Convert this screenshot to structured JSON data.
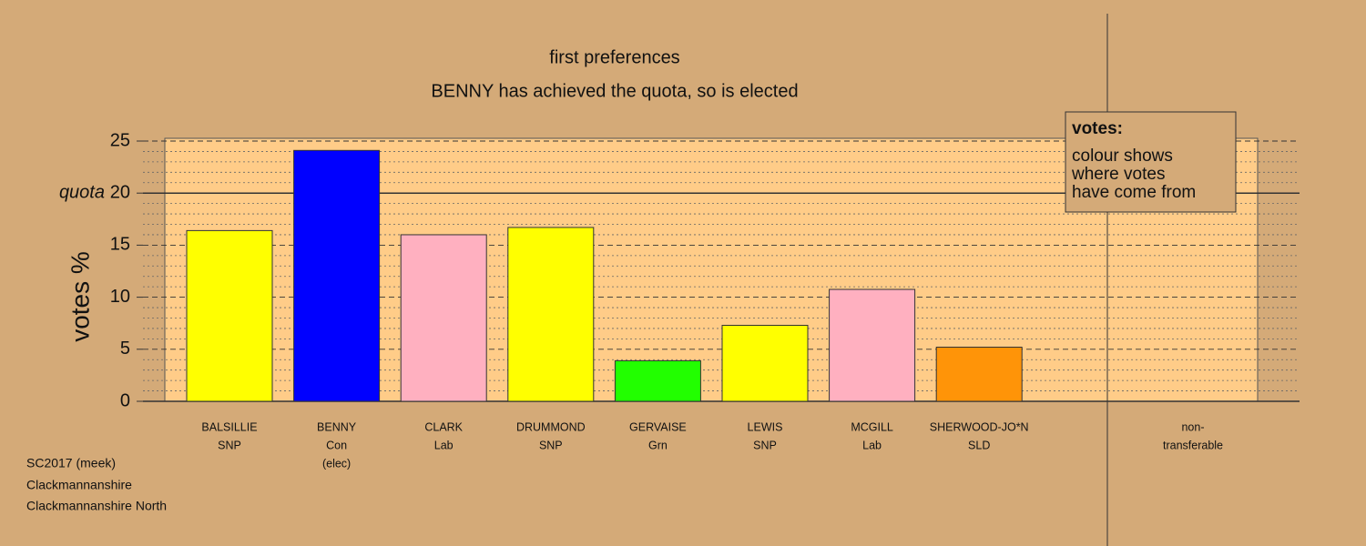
{
  "chart_data": {
    "type": "bar",
    "title": "first preferences",
    "subtitle": "BENNY has achieved the quota, so is elected",
    "y_label": "votes %",
    "categories": [
      "BALSILLIE",
      "BENNY",
      "CLARK",
      "DRUMMOND",
      "GERVAISE",
      "LEWIS",
      "MCGILL",
      "SHERWOOD-JO*N",
      "non-"
    ],
    "parties": [
      "SNP",
      "Con",
      "Lab",
      "SNP",
      "Grn",
      "SNP",
      "Lab",
      "SLD",
      "transferable"
    ],
    "notes": [
      null,
      "(elec)",
      null,
      null,
      null,
      null,
      null,
      null,
      null
    ],
    "values": [
      16.4,
      24.1,
      16.0,
      16.7,
      3.9,
      7.3,
      10.75,
      5.2,
      0
    ],
    "colors": [
      "#ffff00",
      "#0000ff",
      "#ffb0c0",
      "#ffff00",
      "#22ff00",
      "#ffff00",
      "#ffb0c0",
      "#ff9408",
      null
    ],
    "ylim": [
      0,
      25
    ],
    "yticks": [
      0,
      5,
      10,
      15,
      20,
      25
    ],
    "minor_yticks": [
      1,
      2,
      3,
      4,
      6,
      7,
      8,
      9,
      11,
      12,
      13,
      14,
      16,
      17,
      18,
      19,
      21,
      22,
      23,
      24
    ],
    "quota": {
      "value": 20,
      "label": "quota"
    },
    "legend": {
      "title": "votes:",
      "lines": [
        "colour shows",
        "where votes",
        "have come from"
      ]
    },
    "footer": [
      "SC2017 (meek)",
      "Clackmannanshire",
      "Clackmannanshire North"
    ]
  }
}
